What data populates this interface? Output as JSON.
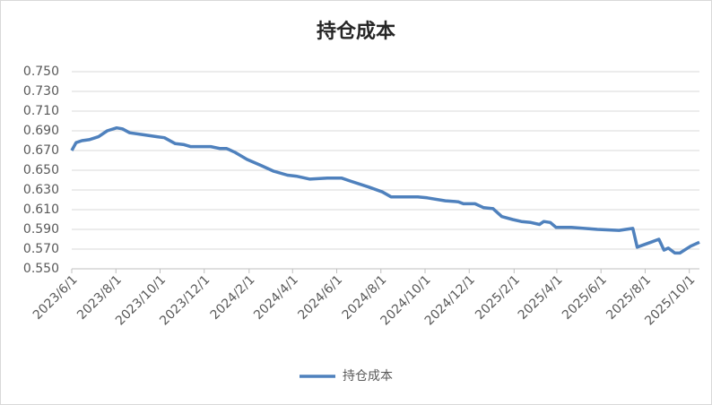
{
  "chart_data": {
    "type": "line",
    "title": "持仓成本",
    "x": [
      "2023/6/1",
      "2023/6/7",
      "2023/6/15",
      "2023/6/25",
      "2023/7/8",
      "2023/7/20",
      "2023/8/2",
      "2023/8/10",
      "2023/8/20",
      "2023/9/8",
      "2023/9/27",
      "2023/10/7",
      "2023/10/22",
      "2023/11/3",
      "2023/11/12",
      "2023/12/10",
      "2023/12/23",
      "2024/1/1",
      "2024/1/13",
      "2024/1/29",
      "2024/2/17",
      "2024/3/6",
      "2024/3/25",
      "2024/4/6",
      "2024/4/25",
      "2024/5/19",
      "2024/6/8",
      "2024/6/20",
      "2024/7/15",
      "2024/8/3",
      "2024/8/15",
      "2024/9/21",
      "2024/10/4",
      "2024/10/29",
      "2024/11/16",
      "2024/11/23",
      "2024/12/9",
      "2024/12/21",
      "2025/1/3",
      "2025/1/15",
      "2025/1/30",
      "2025/2/11",
      "2025/2/24",
      "2025/3/8",
      "2025/3/14",
      "2025/3/23",
      "2025/3/31",
      "2025/4/21",
      "2025/5/9",
      "2025/5/27",
      "2025/6/26",
      "2025/7/15",
      "2025/7/21",
      "2025/8/9",
      "2025/8/20",
      "2025/8/27",
      "2025/9/2",
      "2025/9/11",
      "2025/9/18",
      "2025/10/3",
      "2025/10/15"
    ],
    "series": [
      {
        "name": "持仓成本",
        "color": "#4f81bd",
        "values": [
          0.67,
          0.678,
          0.68,
          0.681,
          0.684,
          0.69,
          0.693,
          0.692,
          0.688,
          0.686,
          0.684,
          0.683,
          0.677,
          0.676,
          0.674,
          0.674,
          0.672,
          0.672,
          0.668,
          0.661,
          0.655,
          0.649,
          0.645,
          0.644,
          0.641,
          0.642,
          0.642,
          0.639,
          0.633,
          0.628,
          0.623,
          0.623,
          0.622,
          0.619,
          0.618,
          0.616,
          0.616,
          0.612,
          0.611,
          0.603,
          0.6,
          0.598,
          0.597,
          0.595,
          0.598,
          0.597,
          0.592,
          0.592,
          0.591,
          0.59,
          0.589,
          0.591,
          0.572,
          0.577,
          0.58,
          0.569,
          0.571,
          0.566,
          0.566,
          0.573,
          0.577
        ]
      }
    ],
    "xlim": [
      "2023/6/1",
      "2025/10/15"
    ],
    "xticks": [
      "2023/6/1",
      "2023/8/1",
      "2023/10/1",
      "2023/12/1",
      "2024/2/1",
      "2024/4/1",
      "2024/6/1",
      "2024/8/1",
      "2024/10/1",
      "2024/12/1",
      "2025/2/1",
      "2025/4/1",
      "2025/6/1",
      "2025/8/1",
      "2025/10/1"
    ],
    "ylim": [
      0.55,
      0.75
    ],
    "yticks": [
      {
        "value": 0.55,
        "label": "0.550"
      },
      {
        "value": 0.57,
        "label": "0.570"
      },
      {
        "value": 0.59,
        "label": "0.590"
      },
      {
        "value": 0.61,
        "label": "0.610"
      },
      {
        "value": 0.63,
        "label": "0.630"
      },
      {
        "value": 0.65,
        "label": "0.650"
      },
      {
        "value": 0.67,
        "label": "0.670"
      },
      {
        "value": 0.69,
        "label": "0.690"
      },
      {
        "value": 0.71,
        "label": "0.710"
      },
      {
        "value": 0.73,
        "label": "0.730"
      },
      {
        "value": 0.75,
        "label": "0.750"
      }
    ],
    "grid": true,
    "legend": "bottom"
  }
}
